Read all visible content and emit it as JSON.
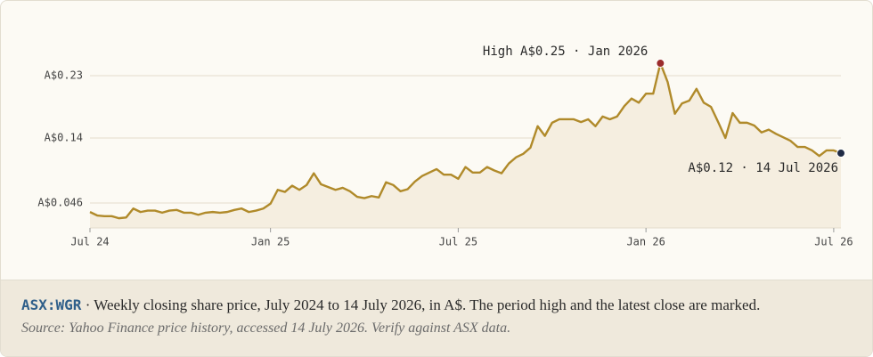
{
  "chart_data": {
    "type": "line",
    "categories": [
      "Jul 24",
      null,
      null,
      null,
      null,
      null,
      null,
      null,
      null,
      null,
      null,
      null,
      null,
      null,
      null,
      null,
      null,
      null,
      null,
      null,
      null,
      null,
      null,
      null,
      null,
      "Jan 25",
      null,
      null,
      null,
      null,
      null,
      null,
      null,
      null,
      null,
      null,
      null,
      null,
      null,
      null,
      null,
      null,
      null,
      null,
      null,
      null,
      null,
      null,
      null,
      null,
      null,
      "Jul 25",
      null,
      null,
      null,
      null,
      null,
      null,
      null,
      null,
      null,
      null,
      null,
      null,
      null,
      null,
      null,
      null,
      null,
      null,
      null,
      null,
      null,
      null,
      null,
      null,
      null,
      "Jan 26",
      null,
      null,
      null,
      null,
      null,
      null,
      null,
      null,
      null,
      null,
      null,
      null,
      null,
      null,
      null,
      null,
      null,
      null,
      null,
      null,
      null,
      null,
      null,
      null,
      null,
      "Jul 26",
      null
    ],
    "values": [
      0.033,
      0.028,
      0.027,
      0.027,
      0.024,
      0.025,
      0.038,
      0.033,
      0.035,
      0.035,
      0.032,
      0.035,
      0.036,
      0.032,
      0.032,
      0.029,
      0.032,
      0.033,
      0.032,
      0.033,
      0.036,
      0.038,
      0.033,
      0.035,
      0.038,
      0.045,
      0.065,
      0.062,
      0.071,
      0.065,
      0.072,
      0.089,
      0.073,
      0.069,
      0.065,
      0.068,
      0.063,
      0.055,
      0.053,
      0.056,
      0.054,
      0.076,
      0.072,
      0.063,
      0.066,
      0.077,
      0.085,
      0.09,
      0.095,
      0.087,
      0.087,
      0.081,
      0.098,
      0.09,
      0.09,
      0.098,
      0.093,
      0.089,
      0.103,
      0.112,
      0.117,
      0.126,
      0.157,
      0.143,
      0.162,
      0.167,
      0.167,
      0.167,
      0.163,
      0.167,
      0.157,
      0.171,
      0.167,
      0.171,
      0.186,
      0.197,
      0.191,
      0.204,
      0.204,
      0.248,
      0.221,
      0.175,
      0.19,
      0.194,
      0.211,
      0.191,
      0.185,
      0.163,
      0.14,
      0.176,
      0.162,
      0.162,
      0.158,
      0.148,
      0.152,
      0.146,
      0.141,
      0.136,
      0.127,
      0.127,
      0.122,
      0.114,
      0.122,
      0.122,
      0.118
    ],
    "color": "#b08a2a",
    "fill_color": "#f5eee0",
    "ylim": [
      0.01,
      0.26
    ],
    "yticks": [
      {
        "value": 0.046,
        "label": "A$0.046"
      },
      {
        "value": 0.14,
        "label": "A$0.14"
      },
      {
        "value": 0.23,
        "label": "A$0.23"
      }
    ],
    "grid": true,
    "annotations": [
      {
        "text": "High A$0.25 · Jan 2026",
        "index": 79,
        "color": "#9b2c2c"
      },
      {
        "text": "A$0.12 · 14 Jul 2026",
        "index": 104,
        "color": "#1f2a44"
      }
    ]
  },
  "caption": {
    "ticker": "ASX:WGR",
    "text": "· Weekly closing share price, July 2024 to 14 July 2026, in A$. The period high and the latest close are marked.",
    "source": "Source: Yahoo Finance price history, accessed 14 July 2026. Verify against ASX data."
  }
}
